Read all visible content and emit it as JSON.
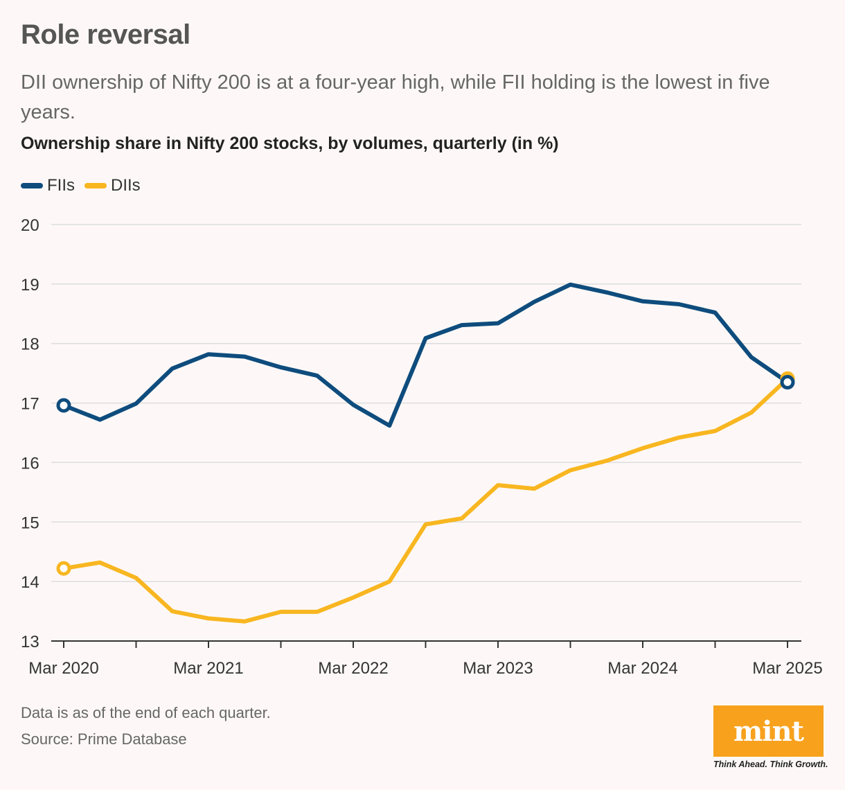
{
  "header": {
    "title": "Role reversal",
    "subtitle": "DII ownership of Nifty 200 is at a four-year high, while FII holding is the lowest in five years."
  },
  "chart_data": {
    "type": "line",
    "title": "Ownership share in Nifty 200 stocks, by volumes, quarterly (in %)",
    "xlabel": "",
    "ylabel": "",
    "ylim": [
      13,
      20
    ],
    "yticks": [
      "13",
      "14",
      "15",
      "16",
      "17",
      "18",
      "19",
      "20"
    ],
    "x": [
      "Mar 2020",
      "Jun 2020",
      "Sep 2020",
      "Dec 2020",
      "Mar 2021",
      "Jun 2021",
      "Sep 2021",
      "Dec 2021",
      "Mar 2022",
      "Jun 2022",
      "Sep 2022",
      "Dec 2022",
      "Mar 2023",
      "Jun 2023",
      "Sep 2023",
      "Dec 2023",
      "Mar 2024",
      "Jun 2024",
      "Sep 2024",
      "Dec 2024",
      "Mar 2025"
    ],
    "xtick_labels": [
      {
        "index": 0,
        "label": "Mar 2020"
      },
      {
        "index": 4,
        "label": "Mar 2021"
      },
      {
        "index": 8,
        "label": "Mar 2022"
      },
      {
        "index": 12,
        "label": "Mar 2023"
      },
      {
        "index": 16,
        "label": "Mar 2024"
      },
      {
        "index": 20,
        "label": "Mar 2025"
      }
    ],
    "grid": true,
    "legend_position": "top-left",
    "series": [
      {
        "name": "FIIs",
        "color": "#0e4c7d",
        "values": [
          16.96,
          16.72,
          16.99,
          17.58,
          17.82,
          17.78,
          17.6,
          17.46,
          16.97,
          16.62,
          18.09,
          18.31,
          18.34,
          18.7,
          18.99,
          18.86,
          18.71,
          18.66,
          18.52,
          17.77,
          17.35
        ]
      },
      {
        "name": "DIIs",
        "color": "#f8b620",
        "values": [
          14.22,
          14.32,
          14.06,
          13.5,
          13.38,
          13.33,
          13.49,
          13.49,
          13.73,
          14.0,
          14.96,
          15.06,
          15.62,
          15.56,
          15.87,
          16.03,
          16.24,
          16.42,
          16.53,
          16.84,
          17.41
        ]
      }
    ]
  },
  "footer": {
    "note": "Data is as of the end of each quarter.",
    "source": "Source: Prime Database",
    "logo": "mint",
    "tagline": "Think Ahead. Think Growth."
  }
}
